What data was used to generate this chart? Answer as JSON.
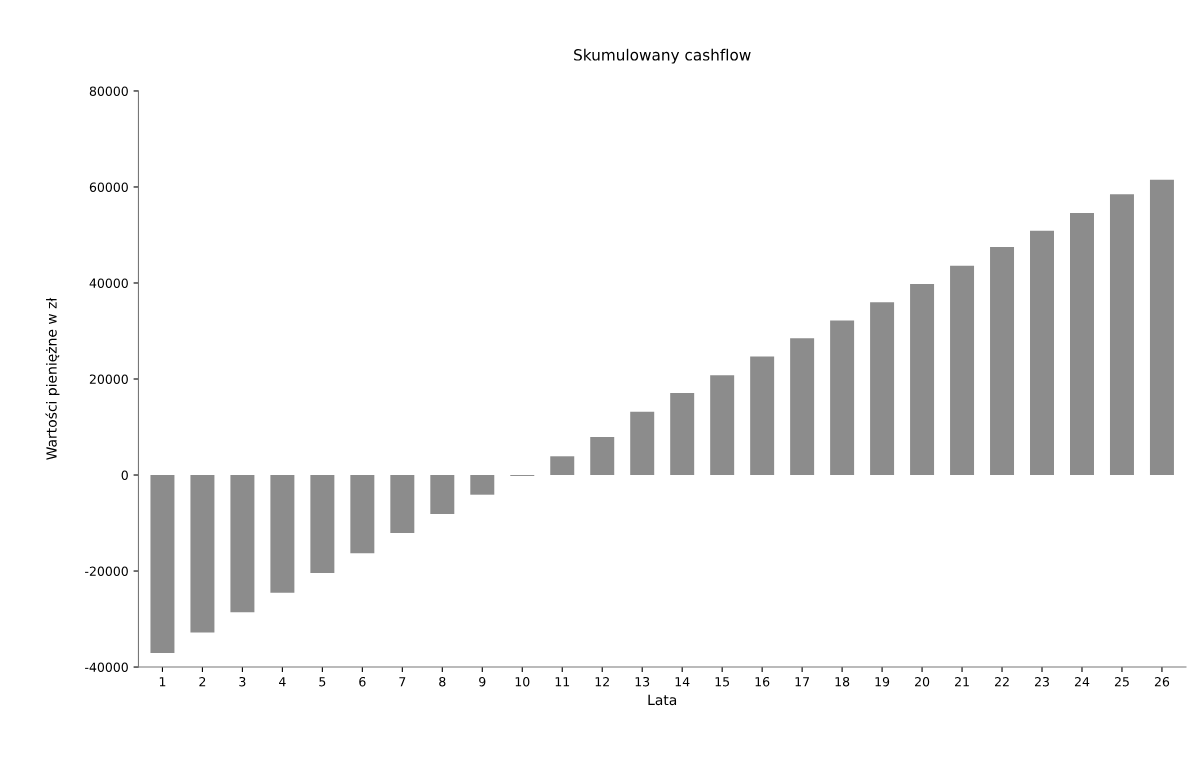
{
  "chart_data": {
    "type": "bar",
    "title": "Skumulowany cashflow",
    "xlabel": "Lata",
    "ylabel": "Wartości pieniężne w zł",
    "categories": [
      "1",
      "2",
      "3",
      "4",
      "5",
      "6",
      "7",
      "8",
      "9",
      "10",
      "11",
      "12",
      "13",
      "14",
      "15",
      "16",
      "17",
      "18",
      "19",
      "20",
      "21",
      "22",
      "23",
      "24",
      "25",
      "26"
    ],
    "values": [
      -37100,
      -32800,
      -28600,
      -24500,
      -20400,
      -16300,
      -12100,
      -8100,
      -4100,
      -200,
      3900,
      7900,
      13200,
      17100,
      20800,
      24700,
      28500,
      32200,
      36000,
      39800,
      43600,
      47500,
      50900,
      54600,
      58500,
      61500
    ],
    "color": "#8c8c8c",
    "ylim": [
      -40000,
      80000
    ],
    "yticks": [
      -40000,
      -20000,
      0,
      20000,
      40000,
      60000,
      80000
    ],
    "grid": false
  }
}
